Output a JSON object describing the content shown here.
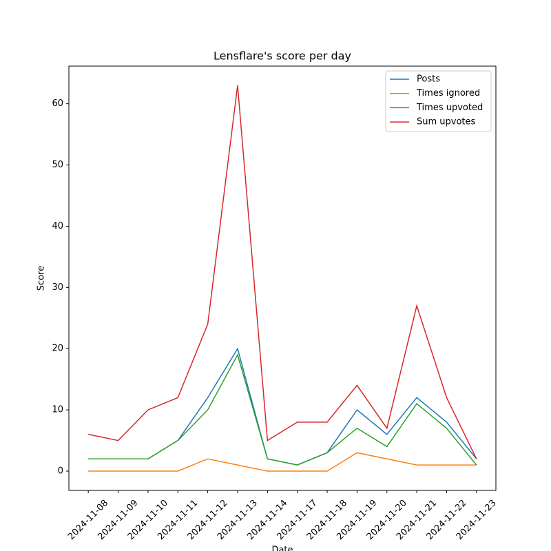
{
  "chart_data": {
    "type": "line",
    "title": "Lensflare's score per day",
    "xlabel": "Date",
    "ylabel": "Score",
    "categories": [
      "2024-11-08",
      "2024-11-09",
      "2024-11-10",
      "2024-11-11",
      "2024-11-12",
      "2024-11-13",
      "2024-11-14",
      "2024-11-17",
      "2024-11-18",
      "2024-11-19",
      "2024-11-20",
      "2024-11-21",
      "2024-11-22",
      "2024-11-23"
    ],
    "series": [
      {
        "name": "Posts",
        "color": "#1f77b4",
        "values": [
          2,
          2,
          2,
          5,
          12,
          20,
          2,
          1,
          3,
          10,
          6,
          12,
          8,
          2
        ]
      },
      {
        "name": "Times ignored",
        "color": "#ff7f0e",
        "values": [
          0,
          0,
          0,
          0,
          2,
          1,
          0,
          0,
          0,
          3,
          2,
          1,
          1,
          1
        ]
      },
      {
        "name": "Times upvoted",
        "color": "#2ca02c",
        "values": [
          2,
          2,
          2,
          5,
          10,
          19,
          2,
          1,
          3,
          7,
          4,
          11,
          7,
          1
        ]
      },
      {
        "name": "Sum upvotes",
        "color": "#d62728",
        "values": [
          6,
          5,
          10,
          12,
          24,
          63,
          5,
          8,
          8,
          14,
          7,
          27,
          12,
          2
        ]
      }
    ],
    "ylim": [
      -3.15,
      66.15
    ],
    "yticks": [
      0,
      10,
      20,
      30,
      40,
      50,
      60
    ],
    "legend": "upper right"
  }
}
